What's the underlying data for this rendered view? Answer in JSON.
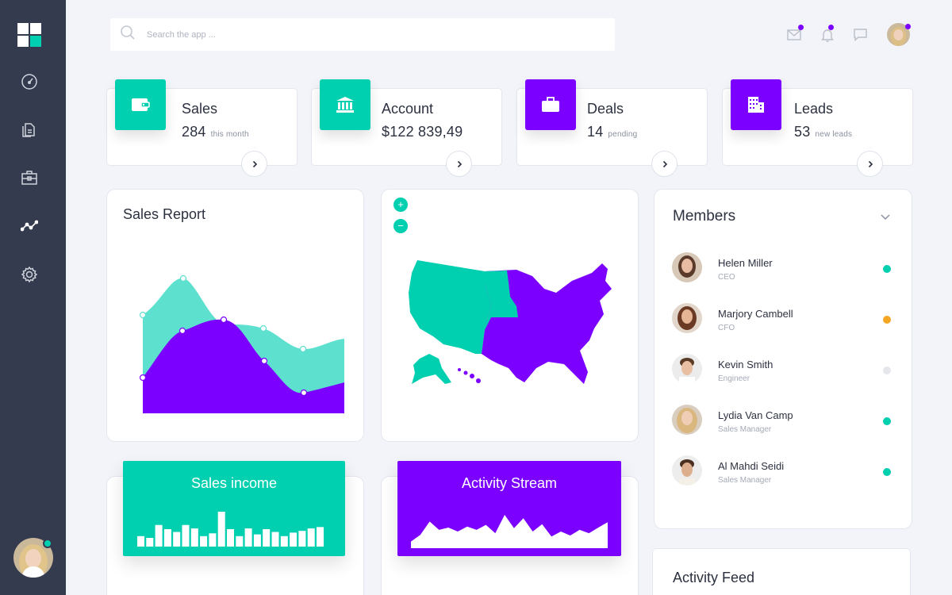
{
  "search": {
    "placeholder": "Search the app ..."
  },
  "colors": {
    "sidebar": "#343b4e",
    "teal": "#00cfb0",
    "purple": "#7b00ff",
    "orange": "#f5a623",
    "grey": "#e5e7ec",
    "background": "#f2f4f9"
  },
  "sidebar": {
    "nav_icons": [
      "dashboard-gauge-icon",
      "documents-icon",
      "briefcase-icon",
      "analytics-icon",
      "settings-icon"
    ]
  },
  "header": {
    "icons": [
      "mail-icon",
      "bell-icon",
      "chat-icon"
    ]
  },
  "stats": [
    {
      "title": "Sales",
      "value": "284",
      "sub": "this month",
      "icon": "wallet-icon",
      "color": "#00cfb0"
    },
    {
      "title": "Account",
      "value": "$122 839,49",
      "sub": "",
      "icon": "bank-icon",
      "color": "#00cfb0"
    },
    {
      "title": "Deals",
      "value": "14",
      "sub": "pending",
      "icon": "briefcase-icon",
      "color": "#7b00ff"
    },
    {
      "title": "Leads",
      "value": "53",
      "sub": "new leads",
      "icon": "building-icon",
      "color": "#7b00ff"
    }
  ],
  "sales_report": {
    "title": "Sales Report"
  },
  "map": {
    "zoom_in": "+",
    "zoom_out": "−"
  },
  "members": {
    "title": "Members",
    "list": [
      {
        "name": "Helen Miller",
        "role": "CEO",
        "status": "#00cfb0"
      },
      {
        "name": "Marjory Cambell",
        "role": "CFO",
        "status": "#f5a623"
      },
      {
        "name": "Kevin Smith",
        "role": "Engineer",
        "status": "#e5e7ec"
      },
      {
        "name": "Lydia Van Camp",
        "role": "Sales Manager",
        "status": "#00cfb0"
      },
      {
        "name": "Al Mahdi Seidi",
        "role": "Sales Manager",
        "status": "#00cfb0"
      }
    ]
  },
  "sales_income": {
    "title": "Sales income",
    "bars": [
      0.3,
      0.25,
      0.62,
      0.5,
      0.42,
      0.62,
      0.52,
      0.3,
      0.38,
      1.0,
      0.5,
      0.3,
      0.52,
      0.35,
      0.5,
      0.42,
      0.3,
      0.4,
      0.45,
      0.52,
      0.56
    ]
  },
  "activity_stream": {
    "title": "Activity Stream",
    "values": [
      0.2,
      0.4,
      0.8,
      0.55,
      0.62,
      0.5,
      0.65,
      0.55,
      0.7,
      0.45,
      1.0,
      0.6,
      0.9,
      0.5,
      0.72,
      0.35,
      0.5,
      0.38,
      0.55,
      0.45,
      0.62,
      0.78
    ]
  },
  "activity_feed": {
    "title": "Activity Feed"
  }
}
